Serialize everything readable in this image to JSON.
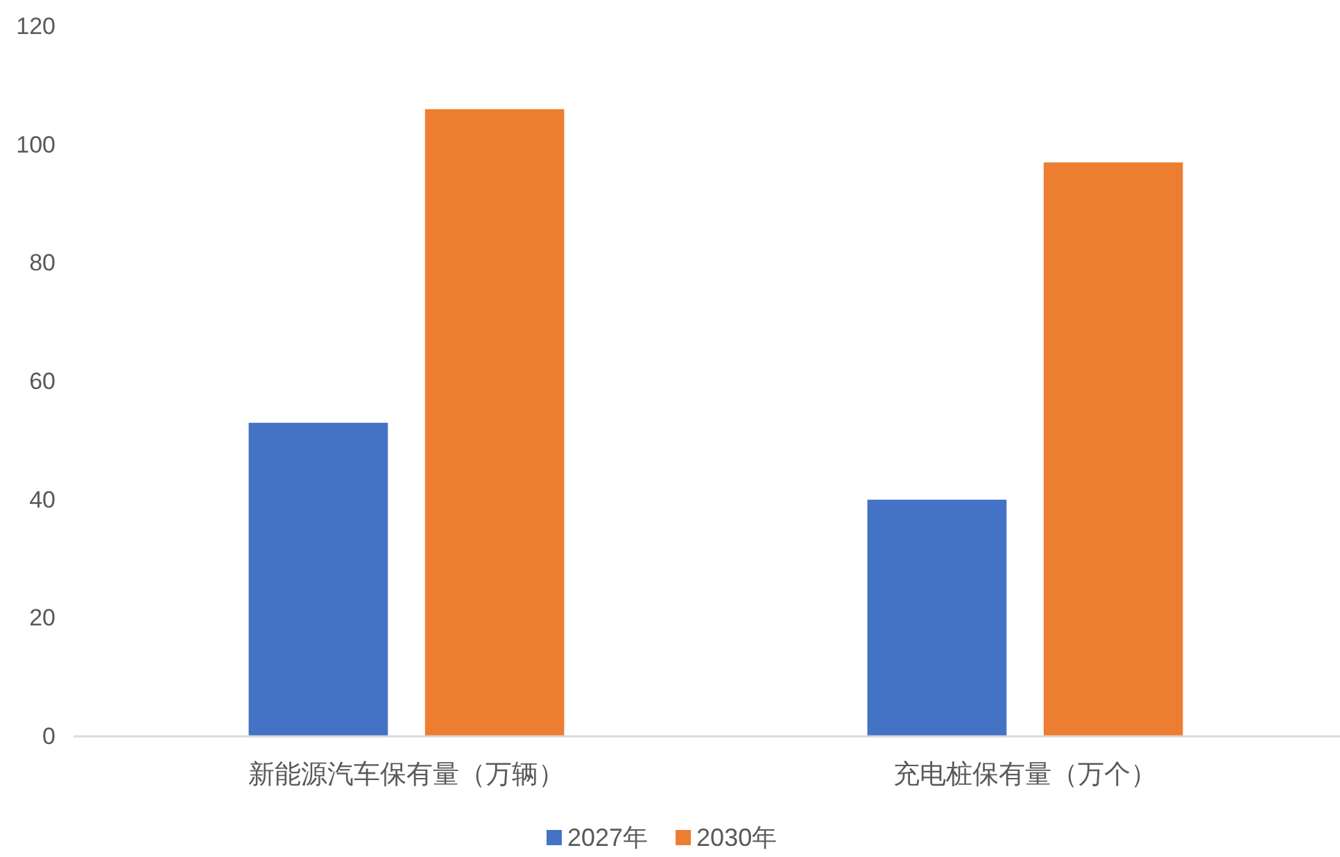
{
  "chart_data": {
    "type": "bar",
    "categories": [
      "新能源汽车保有量（万辆）",
      "充电桩保有量（万个）"
    ],
    "series": [
      {
        "name": "2027年",
        "color": "#4472c4",
        "values": [
          53,
          40
        ]
      },
      {
        "name": "2030年",
        "color": "#ed7d31",
        "values": [
          106,
          97
        ]
      }
    ],
    "ylim": [
      0,
      120
    ],
    "yticks": [
      0,
      20,
      40,
      60,
      80,
      100,
      120
    ],
    "legend": "bottom"
  }
}
